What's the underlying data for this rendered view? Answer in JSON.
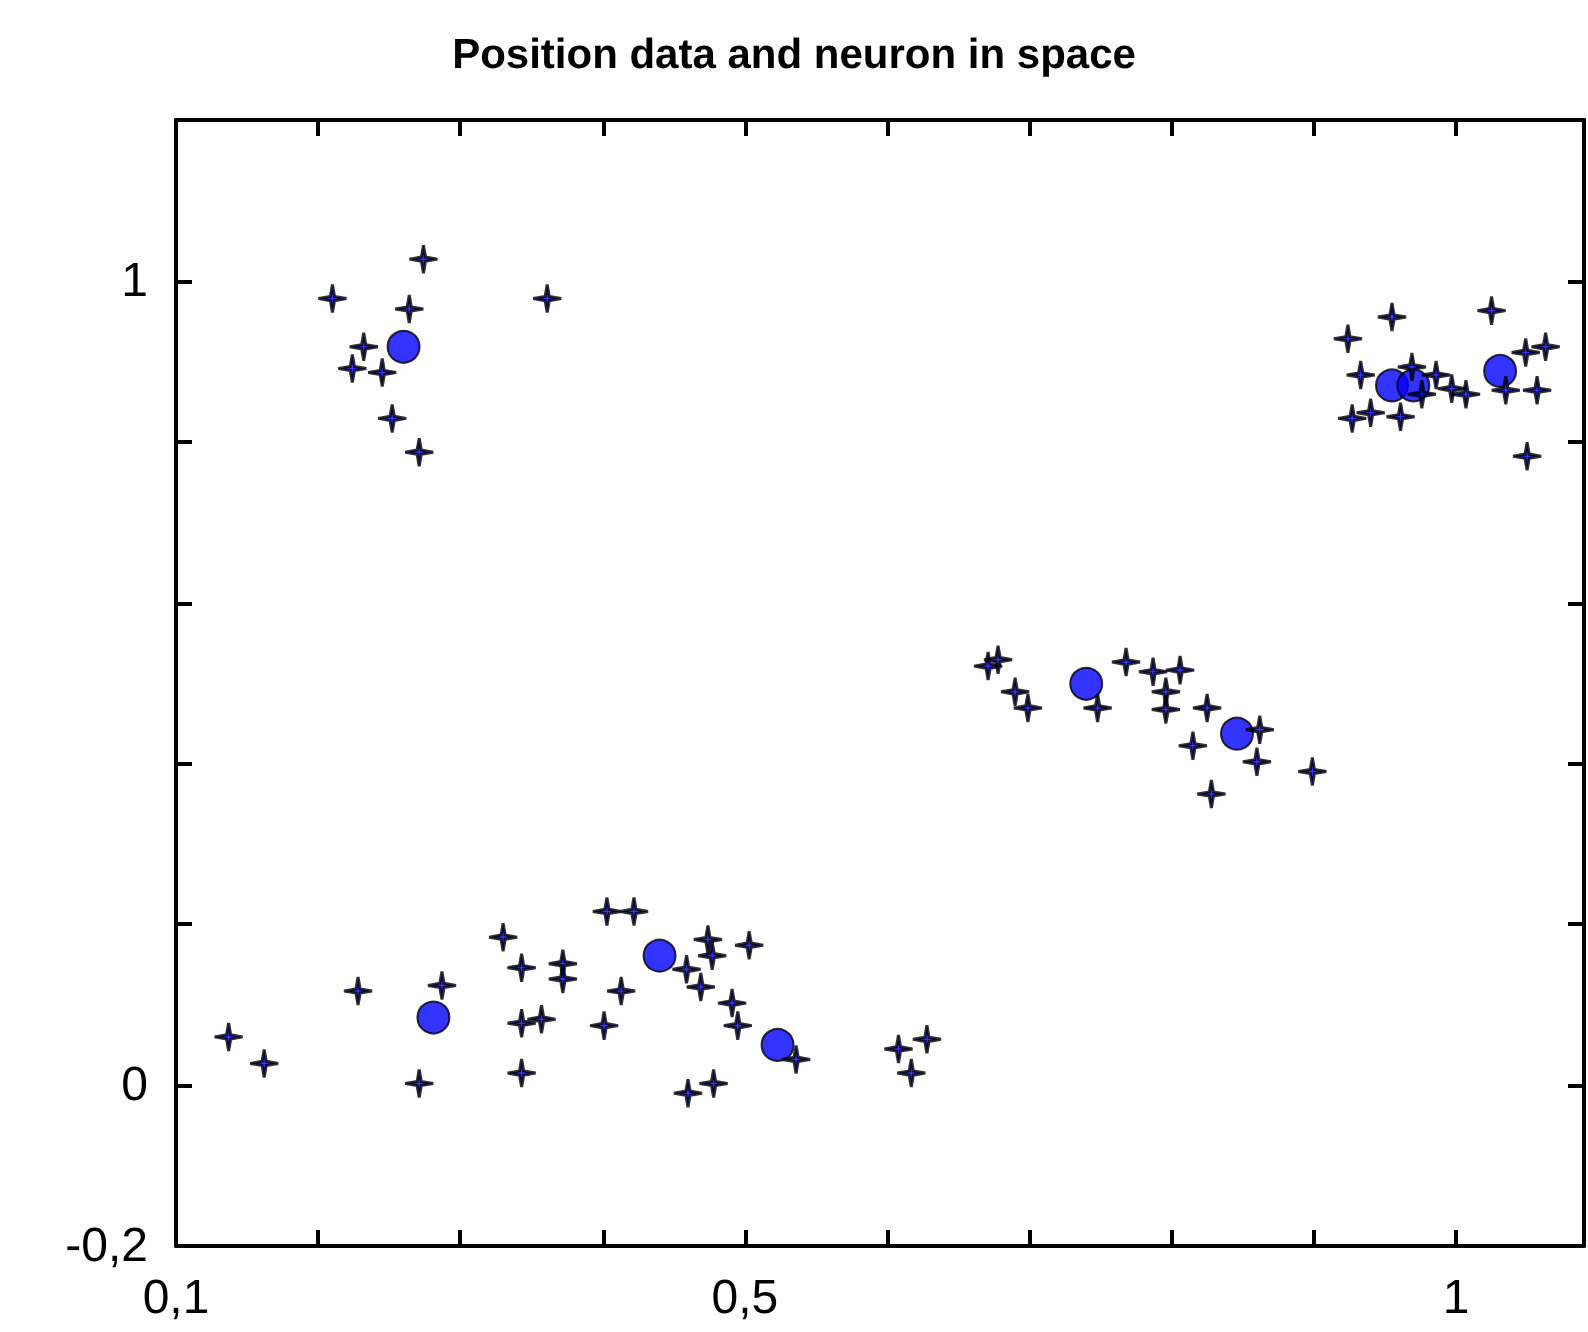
{
  "chart_data": {
    "type": "scatter",
    "title": "Position data and neuron in space",
    "xlim": [
      0.1,
      1.09
    ],
    "ylim": [
      -0.2,
      1.2
    ],
    "xticks": [
      {
        "value": 0.1,
        "label": "0,1"
      },
      {
        "value": 0.2,
        "label": null
      },
      {
        "value": 0.3,
        "label": null
      },
      {
        "value": 0.4,
        "label": null
      },
      {
        "value": 0.5,
        "label": "0,5"
      },
      {
        "value": 0.6,
        "label": null
      },
      {
        "value": 0.7,
        "label": null
      },
      {
        "value": 0.8,
        "label": null
      },
      {
        "value": 0.9,
        "label": null
      },
      {
        "value": 1,
        "label": "1"
      }
    ],
    "yticks": [
      {
        "value": -0.2,
        "label": "-0,2"
      },
      {
        "value": 0,
        "label": "0"
      },
      {
        "value": 0.2,
        "label": null
      },
      {
        "value": 0.4,
        "label": null
      },
      {
        "value": 0.6,
        "label": null
      },
      {
        "value": 0.8,
        "label": null
      },
      {
        "value": 1,
        "label": "1"
      }
    ],
    "grid": false,
    "series": [
      {
        "color": "#000000",
        "marker": "cross",
        "x": [
          0.274,
          0.21,
          0.361,
          0.264,
          0.232,
          0.224,
          0.245,
          0.252,
          0.271,
          0.924,
          0.955,
          1.025,
          0.933,
          0.969,
          0.986,
          0.976,
          0.997,
          1.007,
          0.927,
          0.94,
          0.961,
          1.049,
          1.063,
          1.035,
          1.057,
          1.05,
          0.671,
          0.678,
          0.768,
          0.787,
          0.806,
          0.69,
          0.699,
          0.748,
          0.796,
          0.796,
          0.825,
          0.862,
          0.815,
          0.86,
          0.899,
          0.828,
          0.137,
          0.162,
          0.228,
          0.287,
          0.271,
          0.33,
          0.343,
          0.343,
          0.357,
          0.343,
          0.372,
          0.372,
          0.403,
          0.422,
          0.413,
          0.401,
          0.474,
          0.477,
          0.459,
          0.469,
          0.503,
          0.491,
          0.495,
          0.46,
          0.478,
          0.536,
          0.608,
          0.617,
          0.628
        ],
        "values": [
          1.027,
          0.978,
          0.978,
          0.965,
          0.918,
          0.891,
          0.886,
          0.829,
          0.787,
          0.928,
          0.955,
          0.963,
          0.883,
          0.893,
          0.883,
          0.859,
          0.866,
          0.859,
          0.829,
          0.836,
          0.831,
          0.911,
          0.918,
          0.864,
          0.864,
          0.782,
          0.521,
          0.529,
          0.526,
          0.514,
          0.516,
          0.489,
          0.469,
          0.469,
          0.489,
          0.467,
          0.469,
          0.442,
          0.422,
          0.402,
          0.39,
          0.362,
          0.06,
          0.027,
          0.117,
          0.124,
          0.002,
          0.184,
          0.146,
          0.077,
          0.082,
          0.015,
          0.151,
          0.132,
          0.216,
          0.216,
          0.117,
          0.074,
          0.181,
          0.161,
          0.144,
          0.122,
          0.174,
          0.102,
          0.074,
          -0.01,
          0.002,
          0.032,
          0.045,
          0.015,
          0.057
        ]
      },
      {
        "color": "#0000ff",
        "marker": "circle",
        "x": [
          0.26,
          0.955,
          0.97,
          1.031,
          0.74,
          0.846,
          0.281,
          0.44,
          0.523
        ],
        "values": [
          0.918,
          0.87,
          0.87,
          0.888,
          0.499,
          0.437,
          0.084,
          0.161,
          0.05
        ]
      }
    ]
  }
}
